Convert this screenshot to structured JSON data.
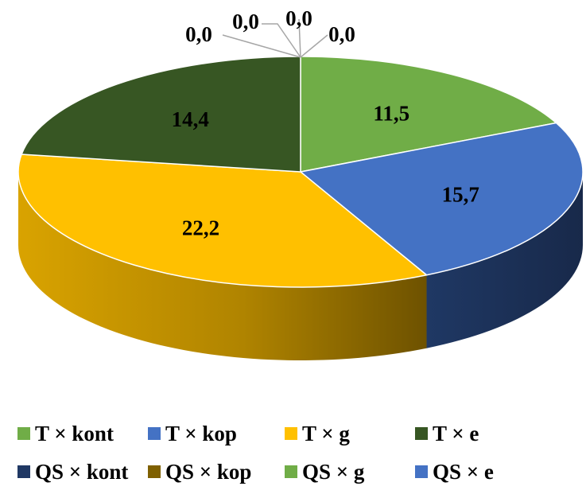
{
  "chart_data": {
    "type": "pie",
    "style": "3d",
    "decimal_separator": ",",
    "slices": [
      {
        "name": "T × kont",
        "value": 11.5,
        "label": "11,5",
        "color": "#70AD47",
        "side_color": "#4E7A32"
      },
      {
        "name": "T × kop",
        "value": 15.7,
        "label": "15,7",
        "color": "#4472C4",
        "side_color": "#1F3864"
      },
      {
        "name": "T × g",
        "value": 22.2,
        "label": "22,2",
        "color": "#FFC000",
        "side_color": "#BF8F00"
      },
      {
        "name": "T × e",
        "value": 14.4,
        "label": "14,4",
        "color": "#375623",
        "side_color": "#263D18"
      },
      {
        "name": "QS × kont",
        "value": 0.0,
        "label": "0,0",
        "color": "#203864",
        "side_color": "#15264A"
      },
      {
        "name": "QS × kop",
        "value": 0.0,
        "label": "0,0",
        "color": "#7F6000",
        "side_color": "#5A4400"
      },
      {
        "name": "QS × g",
        "value": 0.0,
        "label": "0,0",
        "color": "#70AD47",
        "side_color": "#4E7A32"
      },
      {
        "name": "QS × e",
        "value": 0.0,
        "label": "0,0",
        "color": "#4472C4",
        "side_color": "#2F5597"
      }
    ],
    "legend_position": "bottom",
    "leader_line_color": "#A6A6A6"
  }
}
